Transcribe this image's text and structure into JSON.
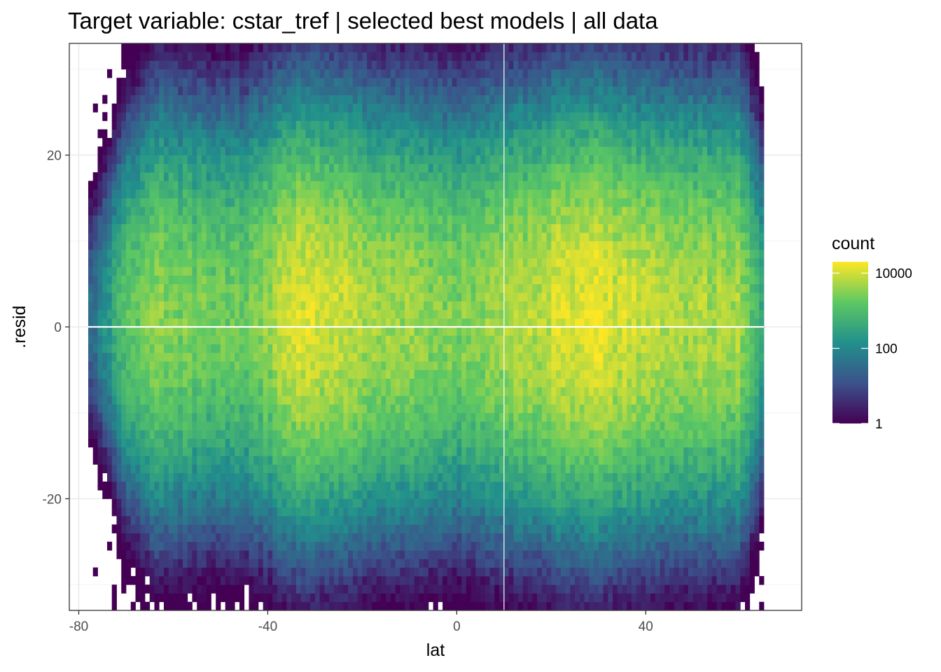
{
  "chart_data": {
    "type": "heatmap",
    "title": "Target variable: cstar_tref | selected best models | all data",
    "xlabel": "lat",
    "ylabel": ".resid",
    "xlim": [
      -82,
      73
    ],
    "ylim": [
      -33,
      33
    ],
    "x_ticks": [
      -80,
      -40,
      0,
      40
    ],
    "y_ticks": [
      -20,
      0,
      20
    ],
    "x_tick_labels": [
      "-80",
      "-40",
      "0",
      "40"
    ],
    "y_tick_labels": [
      "-20",
      "0",
      "20"
    ],
    "grid": true,
    "theme": "bw",
    "bin_width_lat": 1,
    "bin_height_resid": 1,
    "lat_range": [
      -78,
      65
    ],
    "resid_range": [
      -33,
      33
    ],
    "reference_lines": {
      "horizontal": 0,
      "vertical": 10
    },
    "colorscale": {
      "name": "viridis",
      "scale": "log10",
      "colors": [
        "#440154",
        "#3b528b",
        "#21908c",
        "#5dc863",
        "#fde725"
      ],
      "ticks": [
        1,
        100,
        10000
      ],
      "tick_labels": [
        "1",
        "100",
        "10000"
      ],
      "range": [
        1,
        20000
      ]
    },
    "legend": {
      "title": "count",
      "position": "right"
    },
    "density_profile_by_lat": [
      {
        "lat": -78,
        "peak_count": 30,
        "spread": 5
      },
      {
        "lat": -70,
        "peak_count": 1500,
        "spread": 7
      },
      {
        "lat": -64,
        "peak_count": 4000,
        "spread": 8
      },
      {
        "lat": -55,
        "peak_count": 2500,
        "spread": 8
      },
      {
        "lat": -45,
        "peak_count": 2000,
        "spread": 8
      },
      {
        "lat": -33,
        "peak_count": 15000,
        "spread": 8
      },
      {
        "lat": -18,
        "peak_count": 6000,
        "spread": 8
      },
      {
        "lat": 0,
        "peak_count": 3000,
        "spread": 8
      },
      {
        "lat": 24,
        "peak_count": 14000,
        "spread": 8
      },
      {
        "lat": 30,
        "peak_count": 15000,
        "spread": 8
      },
      {
        "lat": 40,
        "peak_count": 8000,
        "spread": 8
      },
      {
        "lat": 47,
        "peak_count": 7000,
        "spread": 8
      },
      {
        "lat": 60,
        "peak_count": 6000,
        "spread": 8
      },
      {
        "lat": 65,
        "peak_count": 300,
        "spread": 7
      }
    ]
  }
}
